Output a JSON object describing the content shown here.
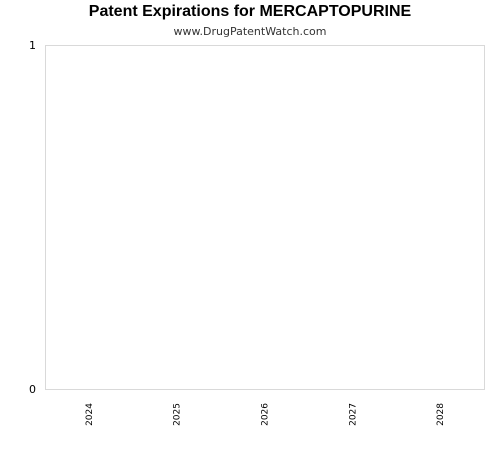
{
  "chart_data": {
    "type": "bar",
    "title": "Patent Expirations for MERCAPTOPURINE",
    "subtitle": "www.DrugPatentWatch.com",
    "xlabel": "",
    "ylabel": "",
    "categories": [
      "2024",
      "2025",
      "2026",
      "2027",
      "2028"
    ],
    "values": [
      0,
      0,
      0,
      0,
      0
    ],
    "ylim": [
      0,
      1
    ],
    "yticks": [
      "0",
      "1"
    ],
    "grid": false,
    "legend": "none",
    "colors": {
      "frame": "#d9d9d9",
      "background": "#ffffff",
      "text": "#000000"
    }
  }
}
